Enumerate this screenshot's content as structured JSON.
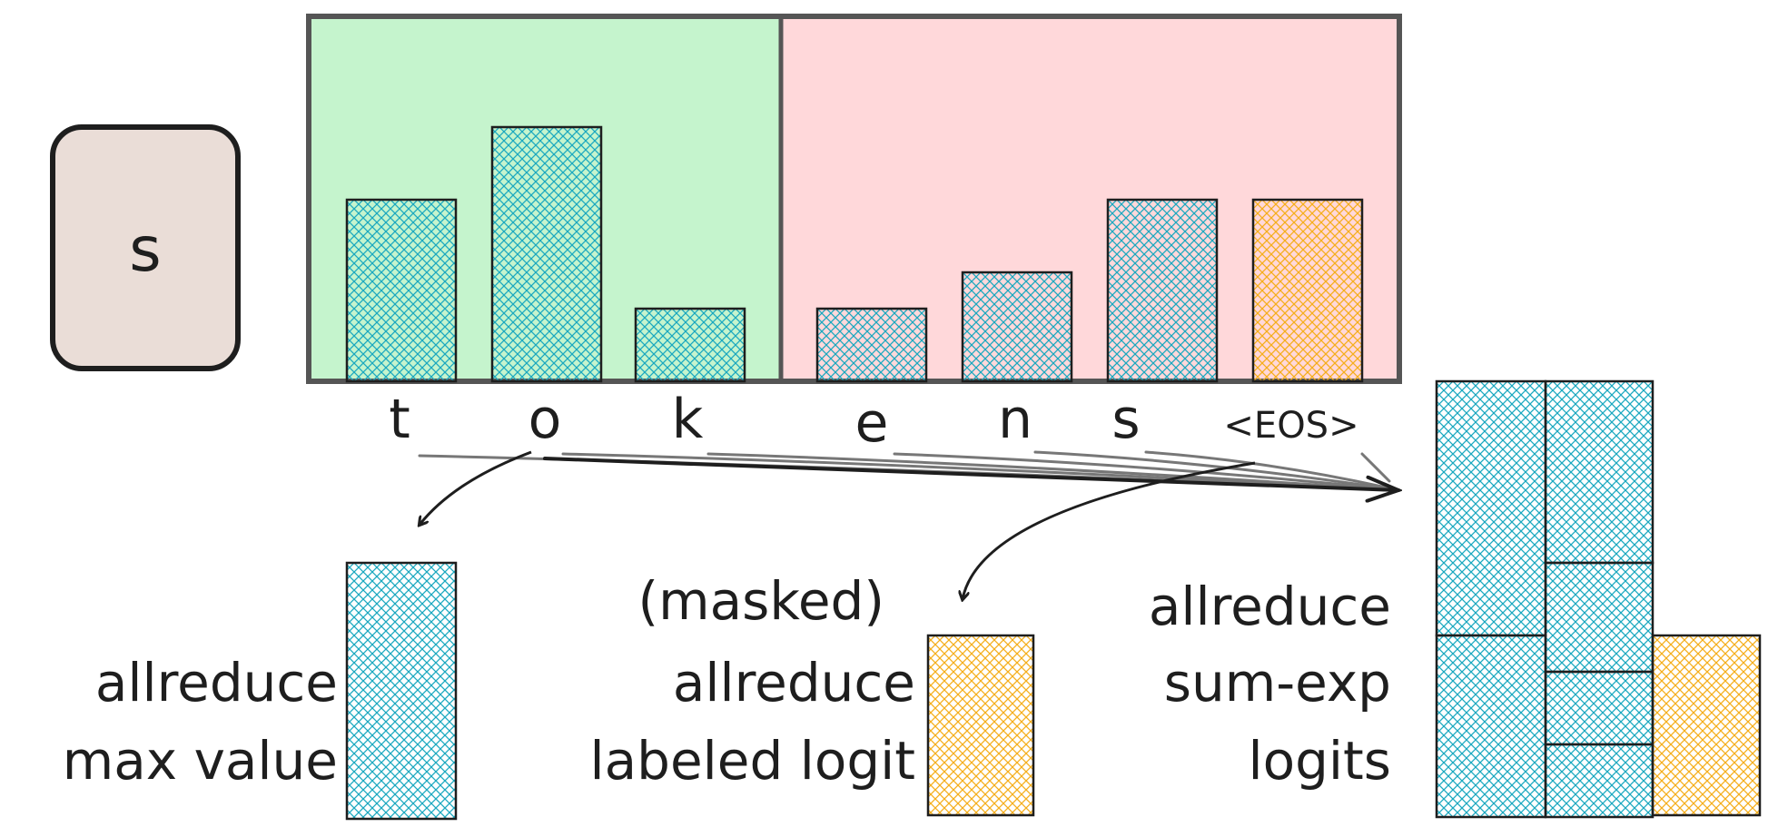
{
  "input_token": "s",
  "vocab_labels": [
    "t",
    "o",
    "k",
    "e",
    "n",
    "s",
    "<EOS>"
  ],
  "vocab_logits": [
    {
      "token": "t",
      "value": 0.5,
      "shard": "local"
    },
    {
      "token": "o",
      "value": 0.7,
      "shard": "local"
    },
    {
      "token": "k",
      "value": 0.2,
      "shard": "local"
    },
    {
      "token": "e",
      "value": 0.2,
      "shard": "remote"
    },
    {
      "token": "n",
      "value": 0.3,
      "shard": "remote"
    },
    {
      "token": "s",
      "value": 0.5,
      "shard": "remote"
    },
    {
      "token": "<EOS>",
      "value": 0.5,
      "shard": "remote",
      "labeled": true
    }
  ],
  "panels": {
    "max": {
      "lines": [
        "allreduce",
        "max value"
      ]
    },
    "labeled": {
      "lines": [
        "(masked)",
        "allreduce",
        "labeled logit"
      ]
    },
    "sumexp": {
      "lines": [
        "allreduce",
        "sum-exp",
        "logits"
      ]
    }
  },
  "colors": {
    "local_shard_bg": "#c5f4cd",
    "remote_shard_bg": "#ffd8da",
    "frame": "#555555",
    "logit_hatch": "#1aa8bf",
    "labeled_hatch": "#f5ae1b",
    "input_box_fill": "#eaddd7",
    "ink": "#1e1e1e"
  }
}
